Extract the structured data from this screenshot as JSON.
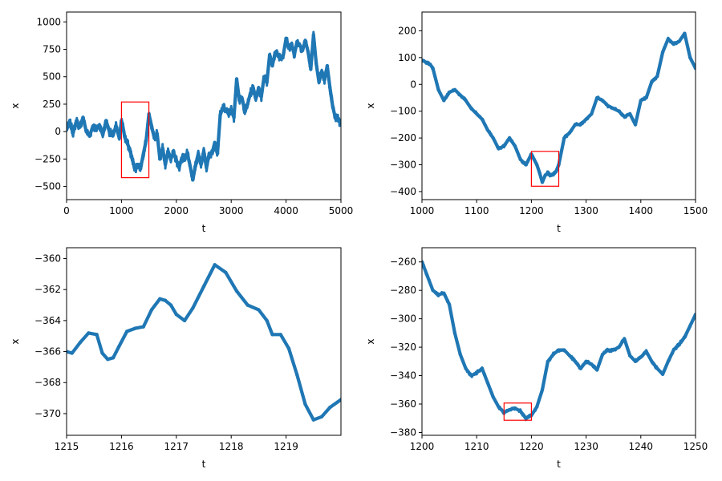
{
  "chart_data": [
    {
      "type": "line",
      "xlabel": "t",
      "ylabel": "x",
      "xlim": [
        0,
        5000
      ],
      "ylim": [
        -620,
        1090
      ],
      "xticks": [
        0,
        1000,
        2000,
        3000,
        4000,
        5000
      ],
      "yticks": [
        -500,
        -250,
        0,
        250,
        500,
        750,
        1000
      ],
      "color": "#1f77b4",
      "noise": 40,
      "x": [
        0,
        60,
        120,
        180,
        240,
        300,
        360,
        420,
        480,
        540,
        600,
        660,
        720,
        780,
        840,
        900,
        960,
        1000,
        1020,
        1060,
        1100,
        1150,
        1200,
        1250,
        1300,
        1350,
        1400,
        1450,
        1500,
        1550,
        1600,
        1650,
        1700,
        1750,
        1800,
        1850,
        1900,
        1950,
        2000,
        2050,
        2100,
        2150,
        2200,
        2250,
        2300,
        2350,
        2400,
        2450,
        2500,
        2550,
        2600,
        2650,
        2700,
        2750,
        2800,
        2850,
        2900,
        2950,
        3000,
        3050,
        3100,
        3150,
        3200,
        3250,
        3300,
        3350,
        3400,
        3450,
        3500,
        3550,
        3600,
        3650,
        3700,
        3750,
        3800,
        3850,
        3900,
        3950,
        4000,
        4050,
        4100,
        4150,
        4200,
        4250,
        4300,
        4350,
        4400,
        4450,
        4500,
        4550,
        4600,
        4650,
        4700,
        4750,
        4800,
        4850,
        4900,
        4950,
        5000
      ],
      "y": [
        20,
        80,
        -10,
        100,
        40,
        130,
        0,
        -40,
        50,
        20,
        60,
        -30,
        100,
        0,
        -40,
        50,
        -60,
        100,
        60,
        -50,
        -100,
        -160,
        -260,
        -340,
        -300,
        -330,
        -200,
        -80,
        160,
        50,
        -60,
        -20,
        -250,
        -150,
        -300,
        -180,
        -240,
        -200,
        -260,
        -330,
        -240,
        -240,
        -200,
        -310,
        -440,
        -310,
        -200,
        -300,
        -180,
        -330,
        -200,
        -200,
        -100,
        -200,
        150,
        220,
        200,
        160,
        200,
        130,
        480,
        280,
        300,
        180,
        250,
        350,
        400,
        300,
        400,
        320,
        500,
        450,
        700,
        600,
        720,
        700,
        680,
        700,
        850,
        760,
        800,
        700,
        820,
        790,
        740,
        830,
        730,
        570,
        880,
        620,
        450,
        550,
        470,
        600,
        400,
        230,
        120,
        120,
        60
      ],
      "boxes": [
        {
          "x0": 1000,
          "x1": 1500,
          "y0": -420,
          "y1": 270
        }
      ]
    },
    {
      "type": "line",
      "xlabel": "t",
      "ylabel": "x",
      "xlim": [
        1000,
        1500
      ],
      "ylim": [
        -430,
        270
      ],
      "xticks": [
        1000,
        1100,
        1200,
        1300,
        1400,
        1500
      ],
      "yticks": [
        -400,
        -300,
        -200,
        -100,
        0,
        100,
        200
      ],
      "color": "#1f77b4",
      "noise": 6,
      "x": [
        1000,
        1010,
        1015,
        1020,
        1030,
        1040,
        1050,
        1060,
        1070,
        1080,
        1090,
        1100,
        1110,
        1120,
        1130,
        1140,
        1150,
        1160,
        1170,
        1180,
        1190,
        1200,
        1205,
        1210,
        1215,
        1220,
        1225,
        1230,
        1235,
        1240,
        1245,
        1250,
        1260,
        1270,
        1280,
        1290,
        1300,
        1310,
        1320,
        1330,
        1340,
        1350,
        1360,
        1370,
        1380,
        1390,
        1400,
        1410,
        1420,
        1430,
        1440,
        1450,
        1460,
        1470,
        1480,
        1490,
        1500
      ],
      "y": [
        90,
        80,
        75,
        60,
        -20,
        -60,
        -30,
        -20,
        -40,
        -60,
        -90,
        -110,
        -130,
        -170,
        -200,
        -240,
        -230,
        -200,
        -230,
        -280,
        -300,
        -260,
        -280,
        -300,
        -330,
        -365,
        -340,
        -330,
        -340,
        -335,
        -325,
        -300,
        -200,
        -180,
        -150,
        -150,
        -130,
        -110,
        -50,
        -60,
        -80,
        -90,
        -100,
        -120,
        -110,
        -150,
        -60,
        -50,
        10,
        30,
        120,
        170,
        150,
        160,
        190,
        100,
        60
      ],
      "boxes": [
        {
          "x0": 1200,
          "x1": 1250,
          "y0": -380,
          "y1": -250
        }
      ]
    },
    {
      "type": "line",
      "xlabel": "t",
      "ylabel": "x",
      "xlim": [
        1215,
        1220
      ],
      "ylim": [
        -371.4,
        -359.3
      ],
      "xticks": [
        1215,
        1216,
        1217,
        1218,
        1219
      ],
      "yticks": [
        -370,
        -368,
        -366,
        -364,
        -362,
        -360
      ],
      "color": "#1f77b4",
      "noise": 0,
      "x": [
        1215,
        1215.1,
        1215.25,
        1215.4,
        1215.55,
        1215.65,
        1215.75,
        1215.85,
        1215.95,
        1216.1,
        1216.25,
        1216.4,
        1216.55,
        1216.7,
        1216.8,
        1216.9,
        1217.0,
        1217.15,
        1217.3,
        1217.5,
        1217.7,
        1217.9,
        1218.1,
        1218.3,
        1218.5,
        1218.65,
        1218.75,
        1218.9,
        1219.05,
        1219.2,
        1219.35,
        1219.5,
        1219.65,
        1219.8,
        1220.0
      ],
      "y": [
        -366.0,
        -366.1,
        -365.4,
        -364.8,
        -364.9,
        -366.1,
        -366.5,
        -366.4,
        -365.7,
        -364.7,
        -364.5,
        -364.4,
        -363.3,
        -362.6,
        -362.7,
        -363.0,
        -363.6,
        -364.0,
        -363.2,
        -361.8,
        -360.4,
        -360.9,
        -362.1,
        -363.0,
        -363.3,
        -364.0,
        -364.9,
        -364.9,
        -365.8,
        -367.5,
        -369.4,
        -370.4,
        -370.2,
        -369.6,
        -369.1
      ],
      "boxes": []
    },
    {
      "type": "line",
      "xlabel": "t",
      "ylabel": "x",
      "xlim": [
        1200,
        1250
      ],
      "ylim": [
        -382,
        -250
      ],
      "xticks": [
        1200,
        1210,
        1220,
        1230,
        1240,
        1250
      ],
      "yticks": [
        -380,
        -360,
        -340,
        -320,
        -300,
        -280,
        -260
      ],
      "color": "#1f77b4",
      "noise": 1.2,
      "x": [
        1200,
        1201,
        1202,
        1203,
        1204,
        1205,
        1206,
        1207,
        1208,
        1209,
        1210,
        1211,
        1212,
        1213,
        1214,
        1215,
        1216,
        1217,
        1218,
        1219,
        1220,
        1221,
        1222,
        1223,
        1224,
        1225,
        1226,
        1227,
        1228,
        1229,
        1230,
        1231,
        1232,
        1233,
        1234,
        1235,
        1236,
        1237,
        1238,
        1239,
        1240,
        1241,
        1242,
        1243,
        1244,
        1245,
        1246,
        1247,
        1248,
        1249,
        1250
      ],
      "y": [
        -260,
        -270,
        -280,
        -283,
        -282,
        -290,
        -310,
        -325,
        -335,
        -340,
        -338,
        -335,
        -345,
        -355,
        -362,
        -366,
        -364,
        -363,
        -365,
        -370,
        -368,
        -362,
        -350,
        -330,
        -325,
        -322,
        -322,
        -326,
        -330,
        -335,
        -330,
        -332,
        -336,
        -325,
        -322,
        -322,
        -320,
        -314,
        -326,
        -330,
        -327,
        -323,
        -330,
        -335,
        -339,
        -330,
        -322,
        -318,
        -313,
        -305,
        -297
      ],
      "boxes": [
        {
          "x0": 1215,
          "x1": 1220,
          "y0": -371.4,
          "y1": -359.3
        }
      ]
    }
  ]
}
